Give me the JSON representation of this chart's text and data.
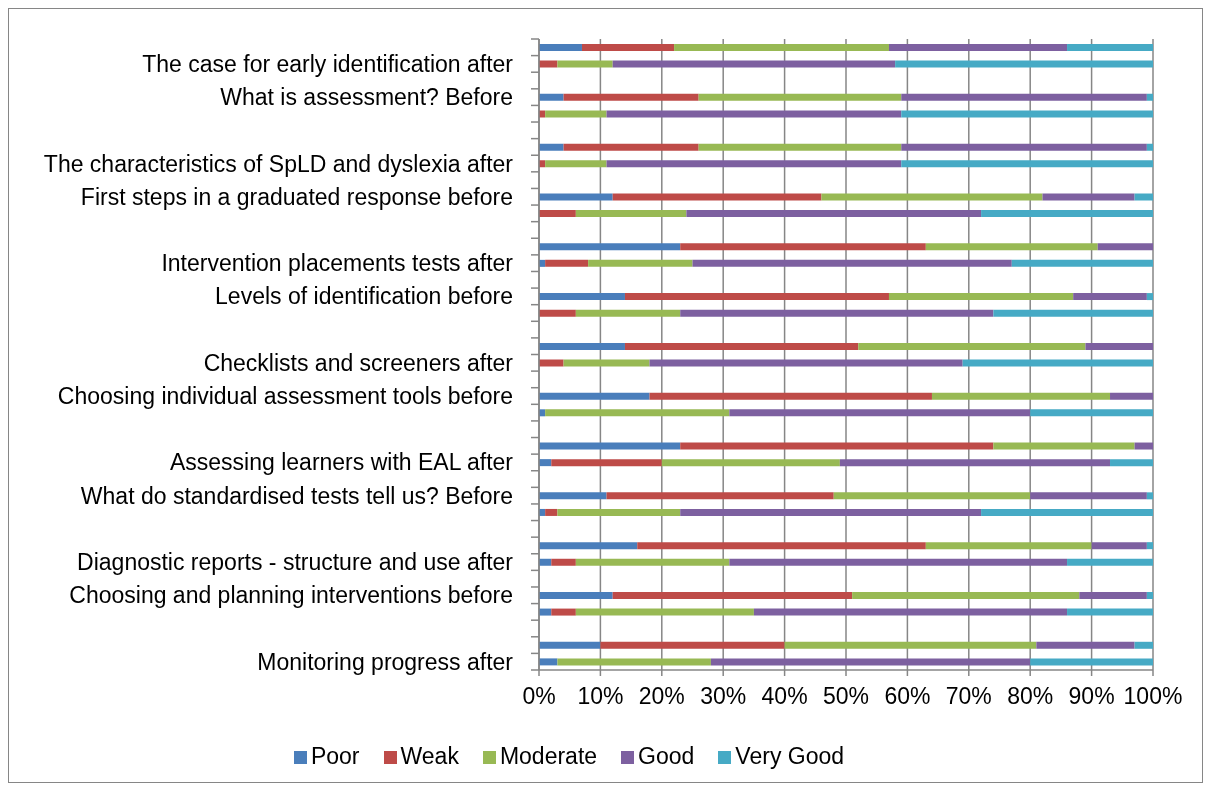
{
  "chart_data": {
    "type": "bar",
    "orientation": "horizontal",
    "stacked": true,
    "categories": [
      null,
      "The case for early identification after",
      null,
      "What is assessment? Before",
      null,
      null,
      null,
      "The characteristics of SpLD and dyslexia after",
      null,
      "First steps in a graduated response before",
      null,
      null,
      null,
      "Intervention placements tests after",
      null,
      "Levels of identification before",
      null,
      null,
      null,
      "Checklists and screeners after",
      null,
      "Choosing individual assessment tools before",
      null,
      null,
      null,
      "Assessing learners with EAL after",
      null,
      "What do standardised tests tell us? Before",
      null,
      null,
      null,
      "Diagnostic reports - structure and use after",
      null,
      "Choosing and planning interventions before",
      null,
      null,
      null,
      "Monitoring progress after"
    ],
    "series": [
      {
        "name": "Poor",
        "color": "#4a7ebb",
        "values": [
          7,
          0,
          null,
          4,
          0,
          null,
          4,
          0,
          null,
          12,
          0,
          null,
          23,
          1,
          null,
          14,
          0,
          null,
          14,
          0,
          null,
          18,
          1,
          null,
          23,
          2,
          null,
          11,
          1,
          null,
          16,
          2,
          null,
          12,
          2,
          null,
          10,
          3
        ]
      },
      {
        "name": "Weak",
        "color": "#be4b48",
        "values": [
          15,
          3,
          null,
          22,
          1,
          null,
          22,
          1,
          null,
          34,
          6,
          null,
          40,
          7,
          null,
          43,
          6,
          null,
          38,
          4,
          null,
          46,
          0,
          null,
          51,
          18,
          null,
          37,
          2,
          null,
          47,
          4,
          null,
          39,
          4,
          null,
          30,
          0
        ]
      },
      {
        "name": "Moderate",
        "color": "#98b954",
        "values": [
          35,
          9,
          null,
          33,
          10,
          null,
          33,
          10,
          null,
          36,
          18,
          null,
          28,
          17,
          null,
          30,
          17,
          null,
          37,
          14,
          null,
          29,
          30,
          null,
          23,
          29,
          null,
          32,
          20,
          null,
          27,
          25,
          null,
          37,
          29,
          null,
          41,
          25
        ]
      },
      {
        "name": "Good",
        "color": "#7d60a0",
        "values": [
          29,
          46,
          null,
          40,
          48,
          null,
          40,
          48,
          null,
          15,
          48,
          null,
          9,
          52,
          null,
          12,
          51,
          null,
          11,
          51,
          null,
          7,
          49,
          null,
          3,
          44,
          null,
          19,
          49,
          null,
          9,
          55,
          null,
          11,
          51,
          null,
          16,
          52
        ]
      },
      {
        "name": "Very Good",
        "color": "#46aac5",
        "values": [
          14,
          42,
          null,
          1,
          41,
          null,
          1,
          41,
          null,
          3,
          28,
          null,
          0,
          23,
          null,
          1,
          26,
          null,
          0,
          31,
          null,
          0,
          20,
          null,
          0,
          7,
          null,
          1,
          28,
          null,
          1,
          14,
          null,
          1,
          14,
          null,
          3,
          20
        ]
      }
    ],
    "xlim": [
      0,
      100
    ],
    "xticks": [
      {
        "value": 0,
        "label": "0%"
      },
      {
        "value": 10,
        "label": "10%"
      },
      {
        "value": 20,
        "label": "20%"
      },
      {
        "value": 30,
        "label": "30%"
      },
      {
        "value": 40,
        "label": "40%"
      },
      {
        "value": 50,
        "label": "50%"
      },
      {
        "value": 60,
        "label": "60%"
      },
      {
        "value": 70,
        "label": "70%"
      },
      {
        "value": 80,
        "label": "80%"
      },
      {
        "value": 90,
        "label": "90%"
      },
      {
        "value": 100,
        "label": "100%"
      }
    ],
    "grid": "x",
    "legend": "bottom"
  }
}
